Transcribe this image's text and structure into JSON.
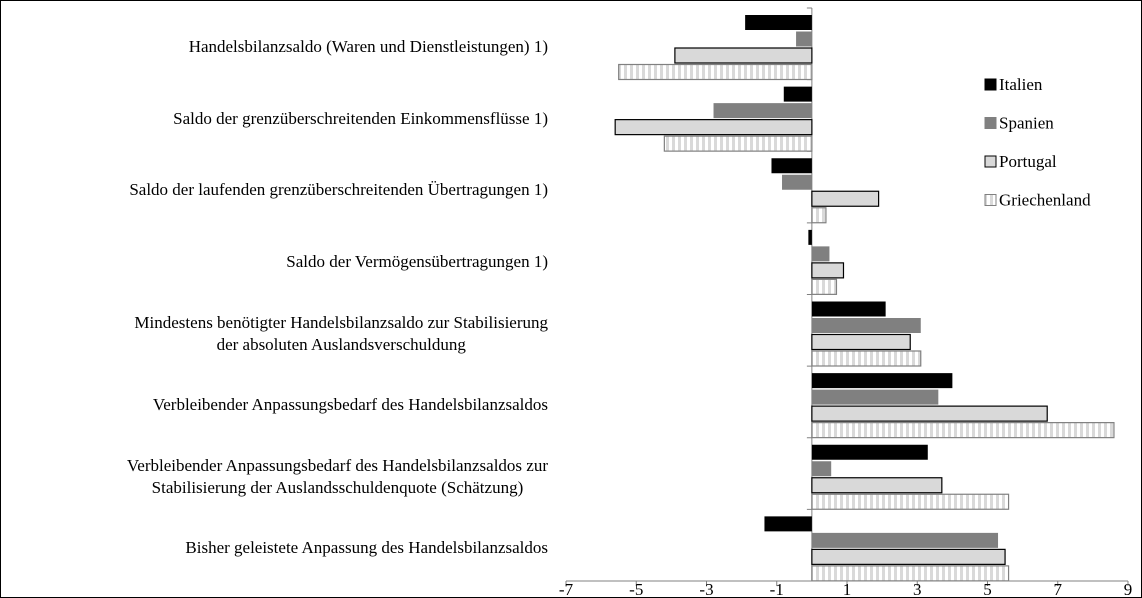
{
  "chart_data": {
    "type": "hbar",
    "categories": [
      "Handelsbilanzsaldo (Waren und Dienstleistungen) 1)",
      "Saldo der grenzüberschreitenden Einkommensflüsse 1)",
      "Saldo der laufenden grenzüberschreitenden  Übertragungen 1)",
      "Saldo der Vermögensübertragungen 1)",
      "Mindestens benötigter Handelsbilanzsaldo zur Stabilisierung\nder absoluten Auslandsverschuldung",
      "Verbleibender Anpassungsbedarf des Handelsbilanzsaldos",
      "Verbleibender Anpassungsbedarf des Handelsbilanzsaldos zur\nStabilisierung der Auslandsschuldenquote (Schätzung)",
      "Bisher geleistete Anpassung des Handelsbilanzsaldos"
    ],
    "series": [
      {
        "name": "Italien",
        "color": "#000000",
        "values": [
          -1.9,
          -0.8,
          -1.15,
          -0.1,
          2.1,
          4.0,
          3.3,
          -1.35
        ]
      },
      {
        "name": "Spanien",
        "color": "#808080",
        "values": [
          -0.45,
          -2.8,
          -0.85,
          0.5,
          3.1,
          3.6,
          0.55,
          5.3
        ]
      },
      {
        "name": "Portugal",
        "color": "#d9d9d9",
        "values": [
          -3.9,
          -5.6,
          1.9,
          0.9,
          2.8,
          6.7,
          3.7,
          5.5
        ]
      },
      {
        "name": "Griechenland",
        "color": "#d9d9d9",
        "pattern": "vertical-stripes",
        "values": [
          -5.5,
          -4.2,
          0.4,
          0.7,
          3.1,
          8.6,
          5.6,
          5.6
        ]
      }
    ],
    "xlim": [
      -7,
      9
    ],
    "xticks": [
      -7,
      -5,
      -3,
      -1,
      1,
      3,
      5,
      7,
      9
    ],
    "legend": "right"
  }
}
